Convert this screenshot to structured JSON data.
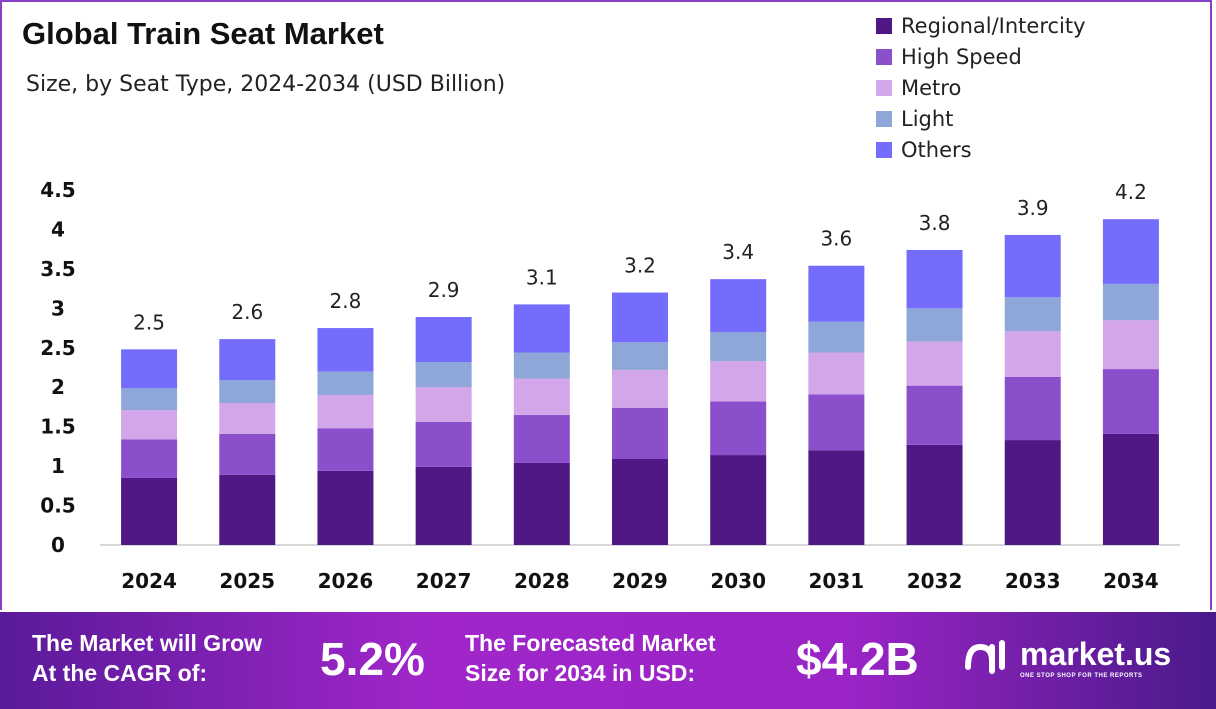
{
  "header": {
    "title": "Global Train Seat Market",
    "subtitle": "Size, by Seat Type, 2024-2034 (USD Billion)"
  },
  "chart_data": {
    "type": "bar",
    "stacked": true,
    "title": "Global Train Seat Market",
    "subtitle": "Size, by Seat Type, 2024-2034 (USD Billion)",
    "xlabel": "",
    "ylabel": "USD Billion",
    "ylim": [
      0,
      4.5
    ],
    "yticks": [
      "0",
      "0.5",
      "1",
      "1.5",
      "2",
      "2.5",
      "3",
      "3.5",
      "4",
      "4.5"
    ],
    "categories": [
      "2024",
      "2025",
      "2026",
      "2027",
      "2028",
      "2029",
      "2030",
      "2031",
      "2032",
      "2033",
      "2034"
    ],
    "totals": [
      "2.5",
      "2.6",
      "2.8",
      "2.9",
      "3.1",
      "3.2",
      "3.4",
      "3.6",
      "3.8",
      "3.9",
      "4.2"
    ],
    "legend_position": "top-right",
    "series": [
      {
        "name": "Regional/Intercity",
        "color": "#4f1884",
        "values": [
          0.85,
          0.89,
          0.94,
          0.99,
          1.04,
          1.09,
          1.14,
          1.2,
          1.27,
          1.33,
          1.41
        ]
      },
      {
        "name": "High Speed",
        "color": "#8b4fcc",
        "values": [
          0.49,
          0.52,
          0.54,
          0.57,
          0.61,
          0.65,
          0.68,
          0.71,
          0.75,
          0.8,
          0.82
        ]
      },
      {
        "name": "Metro",
        "color": "#d3a6ea",
        "values": [
          0.37,
          0.39,
          0.42,
          0.44,
          0.46,
          0.48,
          0.51,
          0.53,
          0.56,
          0.58,
          0.62
        ]
      },
      {
        "name": "Light",
        "color": "#8ea6d8",
        "values": [
          0.28,
          0.29,
          0.3,
          0.32,
          0.33,
          0.35,
          0.37,
          0.39,
          0.42,
          0.43,
          0.46
        ]
      },
      {
        "name": "Others",
        "color": "#736cfd",
        "values": [
          0.49,
          0.52,
          0.55,
          0.57,
          0.61,
          0.63,
          0.67,
          0.71,
          0.74,
          0.79,
          0.82
        ]
      }
    ]
  },
  "footer": {
    "cagr_label": [
      "The Market will Grow",
      "At the CAGR of:"
    ],
    "cagr_value": "5.2%",
    "forecast_label": [
      "The Forecasted Market",
      "Size for 2034 in USD:"
    ],
    "forecast_value": "$4.2B",
    "brand": "market.us",
    "tagline": "ONE STOP SHOP FOR THE REPORTS"
  }
}
